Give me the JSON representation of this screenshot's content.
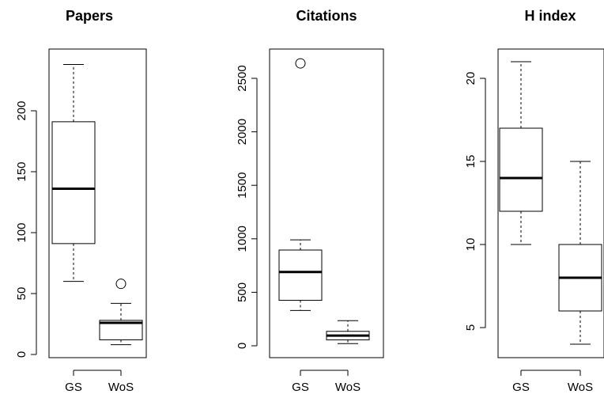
{
  "chart_data": [
    {
      "type": "boxplot",
      "title": "Papers",
      "categories": [
        "GS",
        "WoS"
      ],
      "ylim": [
        0,
        245
      ],
      "yticks": [
        0,
        50,
        100,
        150,
        200
      ],
      "boxes": [
        {
          "name": "GS",
          "min": 60,
          "q1": 91,
          "median": 136,
          "q3": 191,
          "max": 238,
          "outliers": []
        },
        {
          "name": "WoS",
          "min": 8,
          "q1": 12,
          "median": 26,
          "q3": 28,
          "max": 42,
          "outliers": [
            58
          ]
        }
      ]
    },
    {
      "type": "boxplot",
      "title": "Citations",
      "categories": [
        "GS",
        "WoS"
      ],
      "ylim": [
        0,
        2740
      ],
      "yticks": [
        0,
        500,
        1000,
        1500,
        2000,
        2500
      ],
      "boxes": [
        {
          "name": "GS",
          "min": 330,
          "q1": 425,
          "median": 690,
          "q3": 895,
          "max": 990,
          "outliers": [
            2640
          ]
        },
        {
          "name": "WoS",
          "min": 20,
          "q1": 55,
          "median": 95,
          "q3": 135,
          "max": 235,
          "outliers": []
        }
      ]
    },
    {
      "type": "boxplot",
      "title": "H index",
      "categories": [
        "GS",
        "WoS"
      ],
      "ylim": [
        3.5,
        22
      ],
      "yticks": [
        5,
        10,
        15,
        20
      ],
      "boxes": [
        {
          "name": "GS",
          "min": 10,
          "q1": 12,
          "median": 14,
          "q3": 17,
          "max": 21,
          "outliers": []
        },
        {
          "name": "WoS",
          "min": 4,
          "q1": 6,
          "median": 8,
          "q3": 10,
          "max": 15,
          "outliers": []
        }
      ]
    }
  ]
}
